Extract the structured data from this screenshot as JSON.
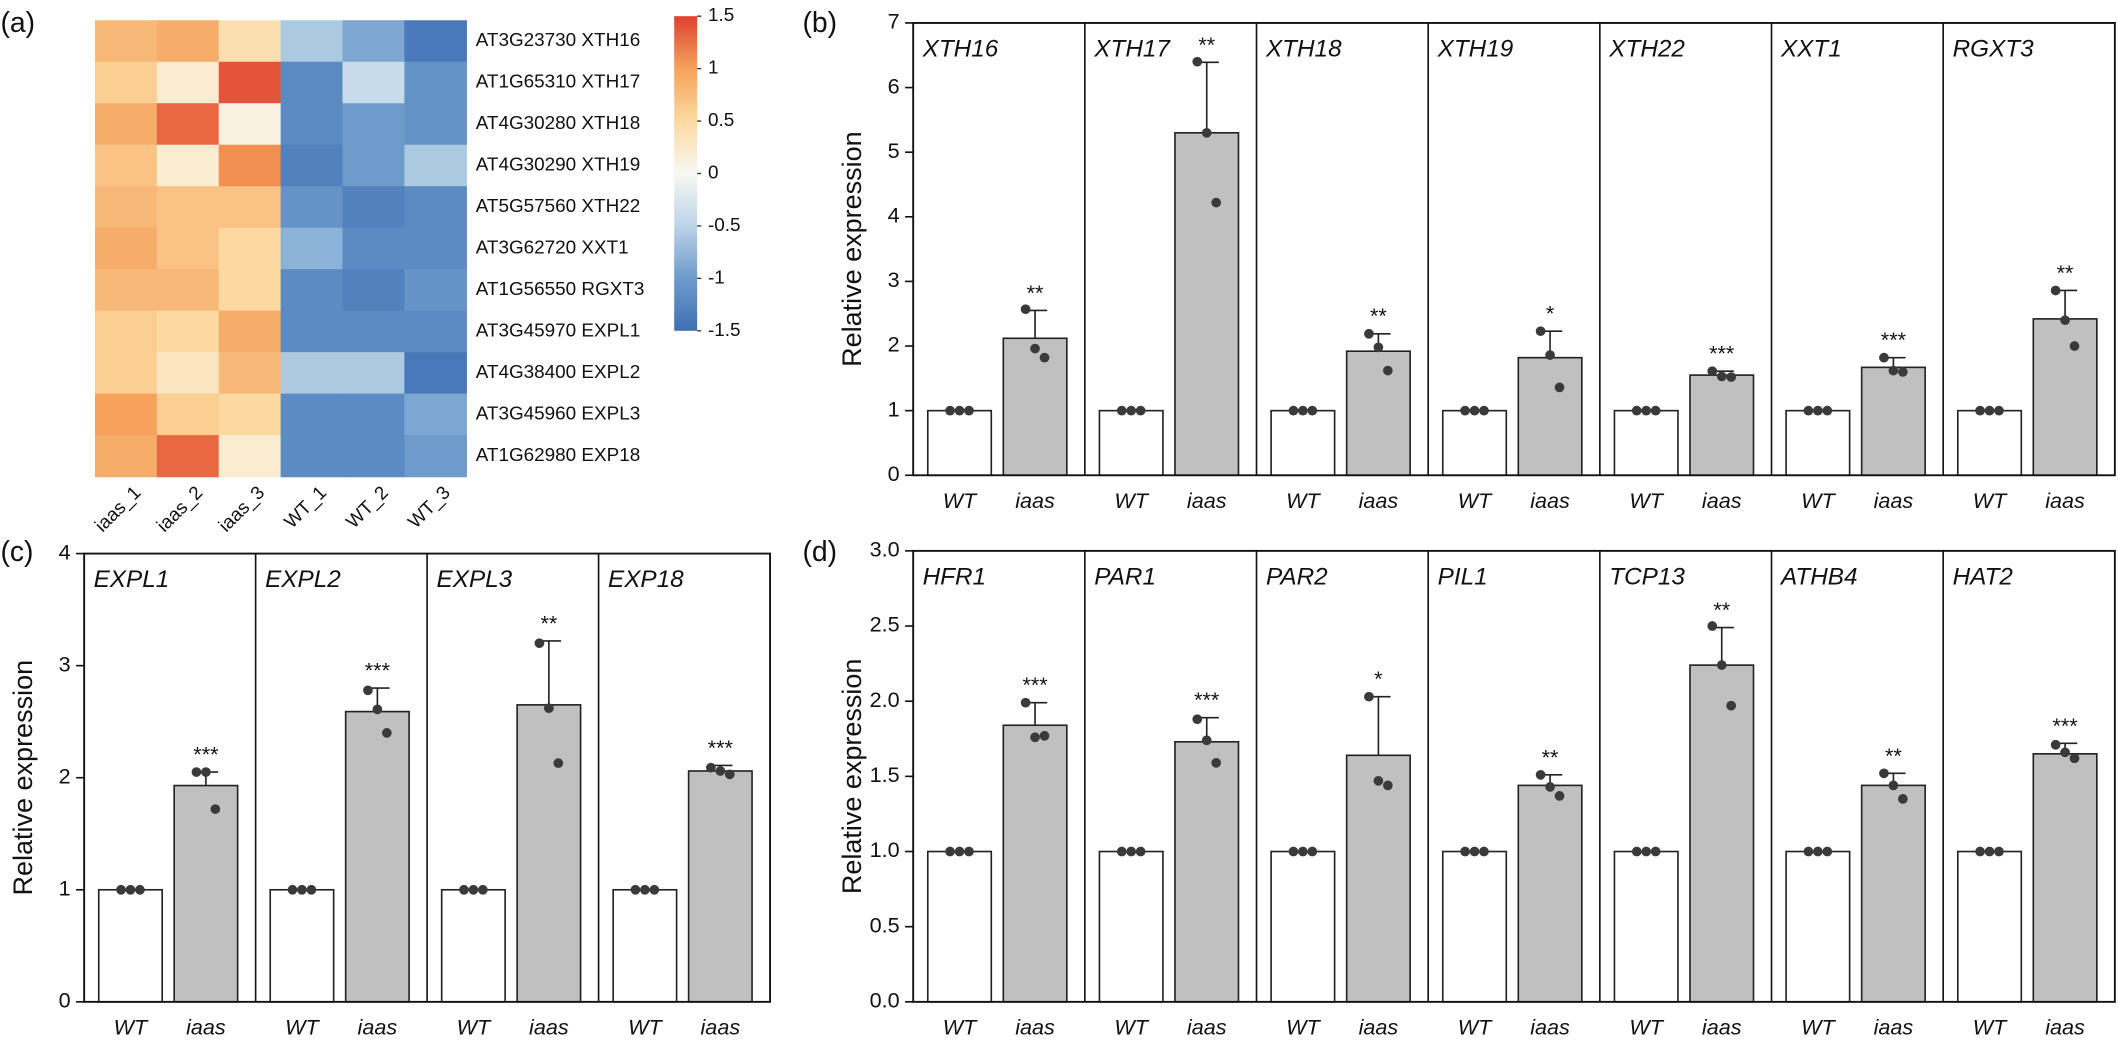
{
  "chart_data": [
    {
      "type": "heatmap",
      "label": "(a)",
      "categories": [
        "iaas_1",
        "iaas_2",
        "iaas_3",
        "WT_1",
        "WT_2",
        "WT_3"
      ],
      "rows": [
        "AT3G23730 XTH16",
        "AT1G65310 XTH17",
        "AT4G30280 XTH18",
        "AT4G30290 XTH19",
        "AT5G57560 XTH22",
        "AT3G62720 XXT1",
        "AT1G56550 RGXT3",
        "AT3G45970 EXPL1",
        "AT4G38400 EXPL2",
        "AT3G45960 EXPL3",
        "AT1G62980 EXP18"
      ],
      "values": [
        [
          0.8,
          0.9,
          0.4,
          -0.6,
          -0.9,
          -1.4
        ],
        [
          0.6,
          0.2,
          1.4,
          -1.2,
          -0.4,
          -1.1
        ],
        [
          0.9,
          1.3,
          0.1,
          -1.2,
          -1.0,
          -1.1
        ],
        [
          0.7,
          0.2,
          1.1,
          -1.3,
          -1.0,
          -0.6
        ],
        [
          0.8,
          0.7,
          0.7,
          -1.1,
          -1.3,
          -1.2
        ],
        [
          0.9,
          0.7,
          0.5,
          -0.8,
          -1.2,
          -1.2
        ],
        [
          0.8,
          0.8,
          0.5,
          -1.2,
          -1.3,
          -1.1
        ],
        [
          0.6,
          0.5,
          0.9,
          -1.2,
          -1.2,
          -1.2
        ],
        [
          0.6,
          0.3,
          0.8,
          -0.6,
          -0.6,
          -1.4
        ],
        [
          1.0,
          0.6,
          0.5,
          -1.2,
          -1.2,
          -0.9
        ],
        [
          0.9,
          1.3,
          0.2,
          -1.2,
          -1.2,
          -1.0
        ]
      ],
      "clim": [
        -1.5,
        1.5
      ],
      "cticks": [
        1.5,
        1,
        0.5,
        0,
        -0.5,
        -1,
        -1.5
      ],
      "colors": [
        "#4070b4",
        "#6e9bcc",
        "#bcd4e8",
        "#f8f8f2",
        "#fcd9a0",
        "#f6a25c",
        "#de412f"
      ]
    },
    {
      "type": "bar",
      "label": "(b)",
      "ylabel": "Relative expression",
      "categories": [
        "WT",
        "iaas"
      ],
      "colors": [
        "#ffffff",
        "#c0c0c0"
      ],
      "ylim": [
        0,
        7
      ],
      "yticks": [
        0,
        1,
        2,
        3,
        4,
        5,
        6,
        7
      ],
      "groups": [
        {
          "name": "XTH16",
          "values": [
            1,
            2.12
          ],
          "errors": [
            0,
            0.43
          ],
          "points": [
            [
              1,
              1,
              1
            ],
            [
              2.57,
              1.96,
              1.82
            ]
          ],
          "annotation": "**"
        },
        {
          "name": "XTH17",
          "values": [
            1,
            5.3
          ],
          "errors": [
            0,
            1.09
          ],
          "points": [
            [
              1,
              1,
              1
            ],
            [
              6.4,
              5.3,
              4.22
            ]
          ],
          "annotation": "**"
        },
        {
          "name": "XTH18",
          "values": [
            1,
            1.92
          ],
          "errors": [
            0,
            0.27
          ],
          "points": [
            [
              1,
              1,
              1
            ],
            [
              2.19,
              1.98,
              1.62
            ]
          ],
          "annotation": "**"
        },
        {
          "name": "XTH19",
          "values": [
            1,
            1.82
          ],
          "errors": [
            0,
            0.41
          ],
          "points": [
            [
              1,
              1,
              1
            ],
            [
              2.23,
              1.86,
              1.36
            ]
          ],
          "annotation": "*"
        },
        {
          "name": "XTH22",
          "values": [
            1,
            1.55
          ],
          "errors": [
            0,
            0.06
          ],
          "points": [
            [
              1,
              1,
              1
            ],
            [
              1.61,
              1.53,
              1.52
            ]
          ],
          "annotation": "***"
        },
        {
          "name": "XXT1",
          "values": [
            1,
            1.67
          ],
          "errors": [
            0,
            0.15
          ],
          "points": [
            [
              1,
              1,
              1
            ],
            [
              1.82,
              1.62,
              1.6
            ]
          ],
          "annotation": "***"
        },
        {
          "name": "RGXT3",
          "values": [
            1,
            2.42
          ],
          "errors": [
            0,
            0.44
          ],
          "points": [
            [
              1,
              1,
              1
            ],
            [
              2.86,
              2.4,
              2.0
            ]
          ],
          "annotation": "**"
        }
      ]
    },
    {
      "type": "bar",
      "label": "(c)",
      "ylabel": "Relative expression",
      "categories": [
        "WT",
        "iaas"
      ],
      "colors": [
        "#ffffff",
        "#c0c0c0"
      ],
      "ylim": [
        0,
        4
      ],
      "yticks": [
        0,
        1,
        2,
        3,
        4
      ],
      "groups": [
        {
          "name": "EXPL1",
          "values": [
            1,
            1.93
          ],
          "errors": [
            0,
            0.12
          ],
          "points": [
            [
              1,
              1,
              1
            ],
            [
              2.05,
              2.05,
              1.72
            ]
          ],
          "annotation": "***"
        },
        {
          "name": "EXPL2",
          "values": [
            1,
            2.59
          ],
          "errors": [
            0,
            0.21
          ],
          "points": [
            [
              1,
              1,
              1
            ],
            [
              2.78,
              2.61,
              2.4
            ]
          ],
          "annotation": "***"
        },
        {
          "name": "EXPL3",
          "values": [
            1,
            2.65
          ],
          "errors": [
            0,
            0.57
          ],
          "points": [
            [
              1,
              1,
              1
            ],
            [
              3.2,
              2.62,
              2.13
            ]
          ],
          "annotation": "**"
        },
        {
          "name": "EXP18",
          "values": [
            1,
            2.06
          ],
          "errors": [
            0,
            0.05
          ],
          "points": [
            [
              1,
              1,
              1
            ],
            [
              2.09,
              2.06,
              2.03
            ]
          ],
          "annotation": "***"
        }
      ]
    },
    {
      "type": "bar",
      "label": "(d)",
      "ylabel": "Relative expression",
      "categories": [
        "WT",
        "iaas"
      ],
      "colors": [
        "#ffffff",
        "#c0c0c0"
      ],
      "ylim": [
        0,
        3
      ],
      "yticks": [
        {
          "value": 0,
          "label": "0.0"
        },
        0.5,
        {
          "value": 1,
          "label": "1.0"
        },
        1.5,
        {
          "value": 2,
          "label": "2.0"
        },
        2.5,
        {
          "value": 3,
          "label": "3.0"
        }
      ],
      "groups": [
        {
          "name": "HFR1",
          "values": [
            1,
            1.84
          ],
          "errors": [
            0,
            0.15
          ],
          "points": [
            [
              1,
              1,
              1
            ],
            [
              1.99,
              1.76,
              1.77
            ]
          ],
          "annotation": "***"
        },
        {
          "name": "PAR1",
          "values": [
            1,
            1.73
          ],
          "errors": [
            0,
            0.16
          ],
          "points": [
            [
              1,
              1,
              1
            ],
            [
              1.88,
              1.74,
              1.59
            ]
          ],
          "annotation": "***"
        },
        {
          "name": "PAR2",
          "values": [
            1,
            1.64
          ],
          "errors": [
            0,
            0.39
          ],
          "points": [
            [
              1,
              1,
              1
            ],
            [
              2.03,
              1.47,
              1.44
            ]
          ],
          "annotation": "*"
        },
        {
          "name": "PIL1",
          "values": [
            1,
            1.44
          ],
          "errors": [
            0,
            0.07
          ],
          "points": [
            [
              1,
              1,
              1
            ],
            [
              1.51,
              1.43,
              1.37
            ]
          ],
          "annotation": "**"
        },
        {
          "name": "TCP13",
          "values": [
            1,
            2.24
          ],
          "errors": [
            0,
            0.25
          ],
          "points": [
            [
              1,
              1,
              1
            ],
            [
              2.5,
              2.24,
              1.97
            ]
          ],
          "annotation": "**"
        },
        {
          "name": "ATHB4",
          "values": [
            1,
            1.44
          ],
          "errors": [
            0,
            0.08
          ],
          "points": [
            [
              1,
              1,
              1
            ],
            [
              1.52,
              1.44,
              1.35
            ]
          ],
          "annotation": "**"
        },
        {
          "name": "HAT2",
          "values": [
            1,
            1.65
          ],
          "errors": [
            0,
            0.07
          ],
          "points": [
            [
              1,
              1,
              1
            ],
            [
              1.71,
              1.66,
              1.62
            ]
          ],
          "annotation": "***"
        }
      ]
    }
  ]
}
